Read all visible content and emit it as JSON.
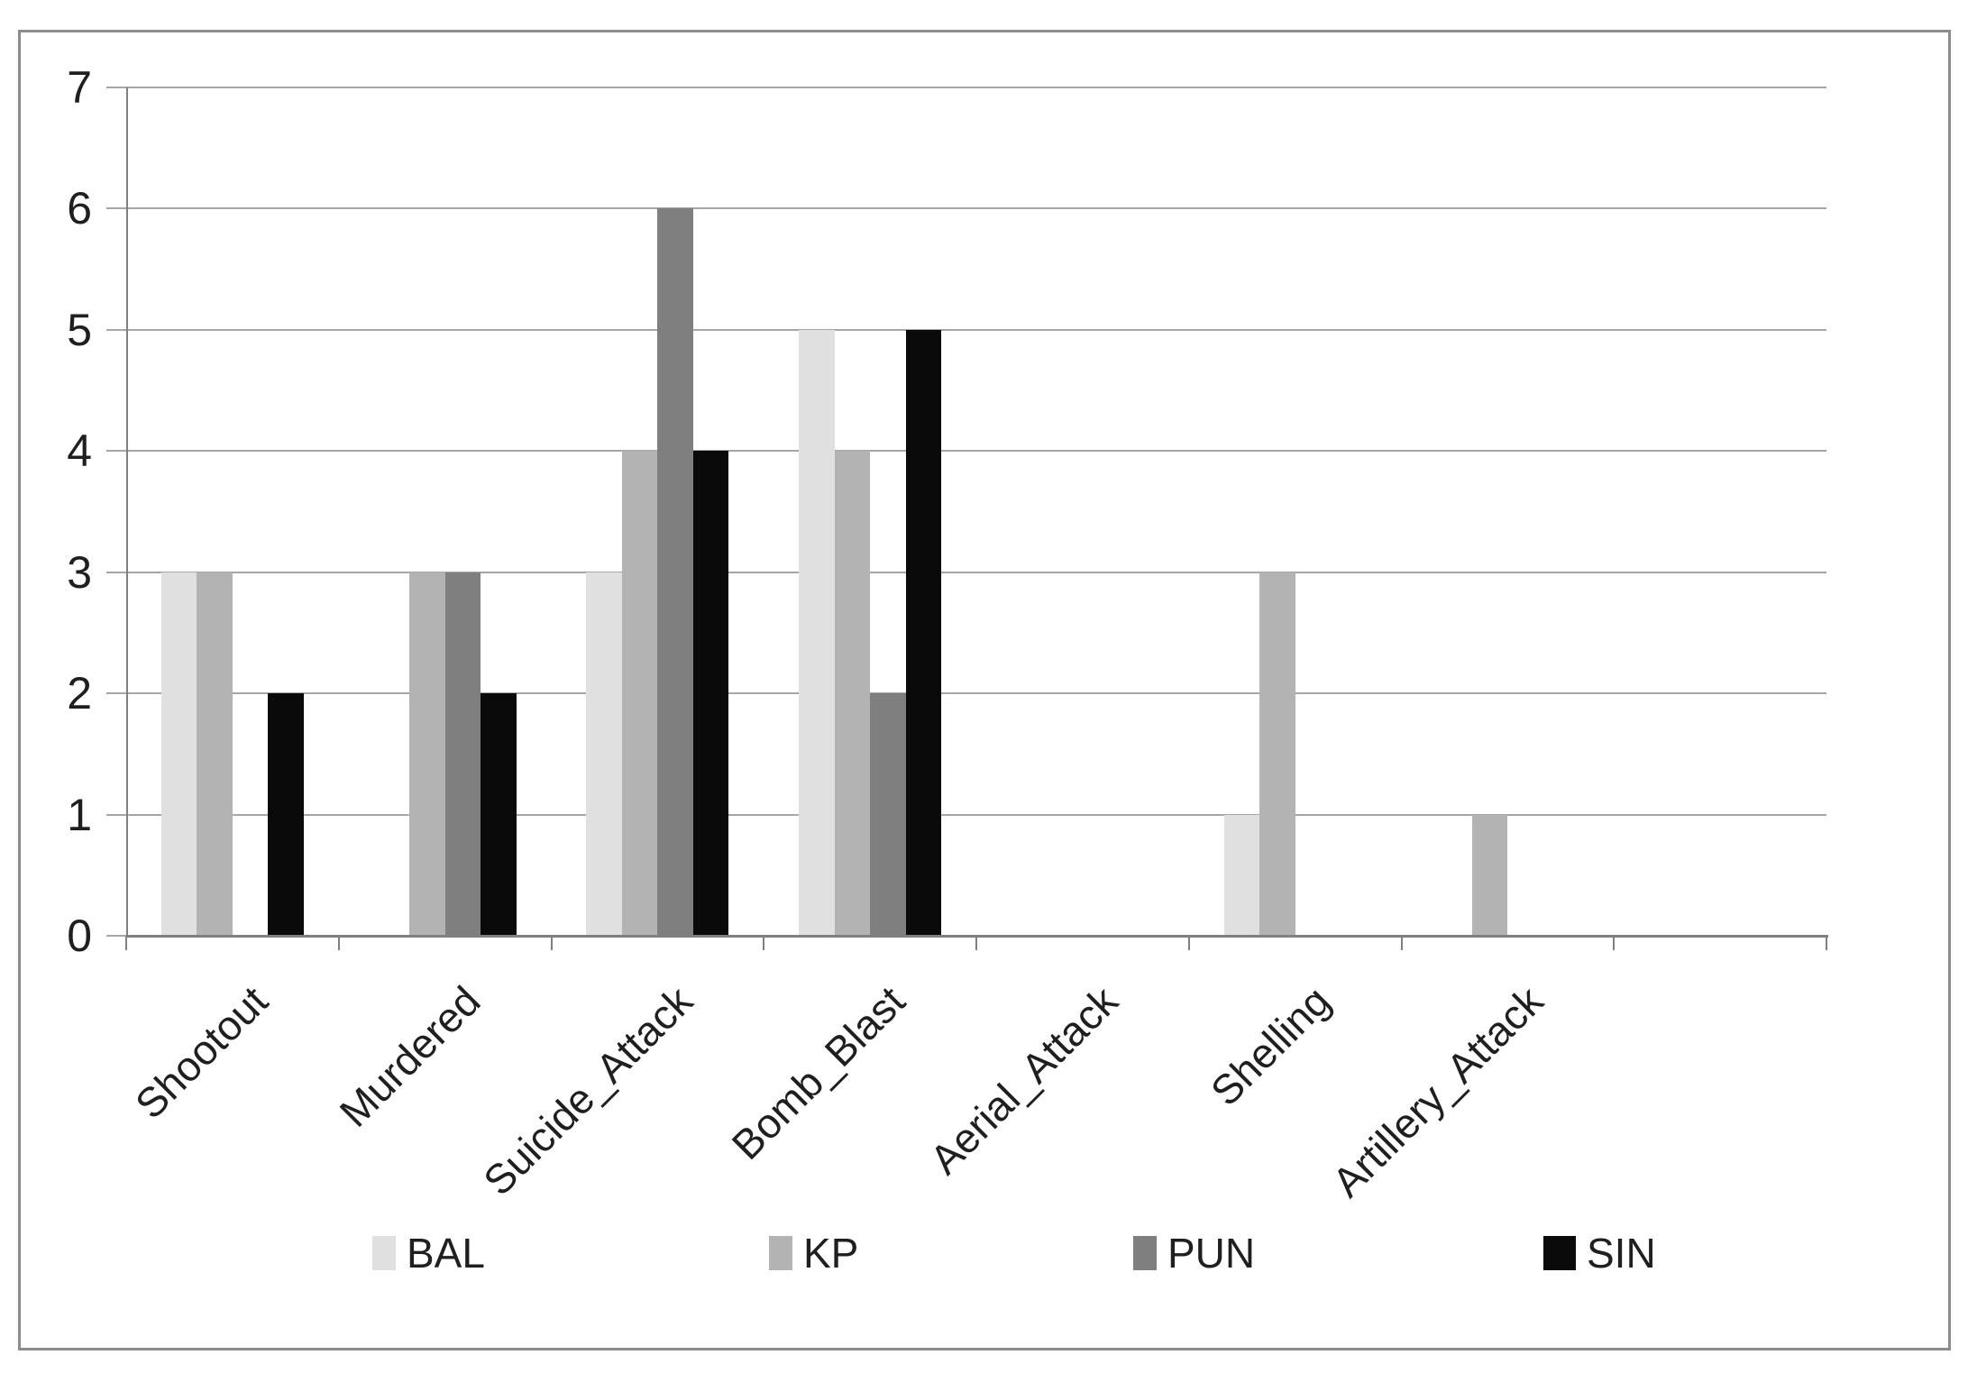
{
  "chart_data": {
    "type": "bar",
    "title": "",
    "xlabel": "",
    "ylabel": "",
    "categories": [
      "Shootout",
      "Murdered",
      "Suicide_Attack",
      "Bomb_Blast",
      "Aerial_Attack",
      "Shelling",
      "Artillery_Attack"
    ],
    "series": [
      {
        "name": "BAL",
        "color": "#e0e0e0",
        "values": [
          3,
          0,
          3,
          5,
          0,
          1,
          0
        ]
      },
      {
        "name": "KP",
        "color": "#b3b3b3",
        "values": [
          3,
          3,
          4,
          4,
          0,
          3,
          1
        ]
      },
      {
        "name": "PUN",
        "color": "#7f7f7f",
        "values": [
          0,
          3,
          6,
          2,
          0,
          0,
          0
        ]
      },
      {
        "name": "SIN",
        "color": "#0a0a0a",
        "values": [
          2,
          2,
          4,
          5,
          0,
          0,
          0
        ]
      }
    ],
    "ylim": [
      0,
      7
    ],
    "yticks": [
      "0",
      "1",
      "2",
      "3",
      "4",
      "5",
      "6",
      "7"
    ],
    "grid": true,
    "legend_position": "bottom",
    "trailing_empty_category_slots": 1
  },
  "legend": {
    "items": [
      {
        "label": "BAL",
        "color": "#e0e0e0"
      },
      {
        "label": "KP",
        "color": "#b3b3b3"
      },
      {
        "label": "PUN",
        "color": "#7f7f7f"
      },
      {
        "label": "SIN",
        "color": "#0a0a0a"
      }
    ]
  },
  "colors": {
    "background": "#ffffff",
    "frame_border": "#8c8c8c",
    "gridline": "#a6a6a6",
    "axis": "#808080",
    "text": "#1f1f1f"
  }
}
